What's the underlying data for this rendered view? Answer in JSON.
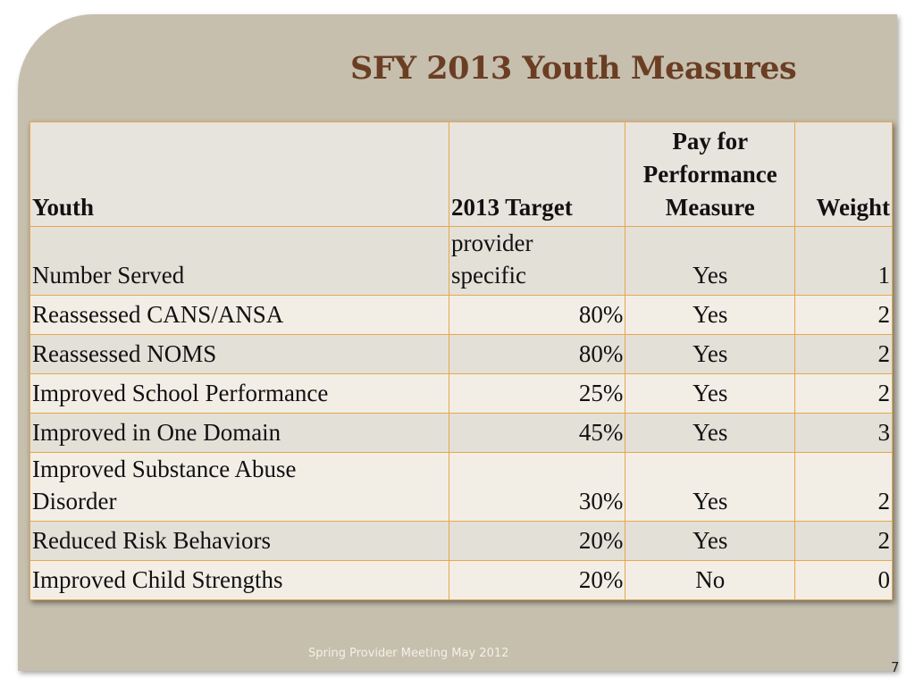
{
  "slide": {
    "title": "SFY 2013 Youth Measures",
    "footer": "Spring Provider Meeting May 2012",
    "page_number": "7"
  },
  "table": {
    "headers": {
      "youth": "Youth",
      "target": "2013 Target",
      "pay_line1": "Pay for",
      "pay_line2": "Performance",
      "pay_line3": "Measure",
      "weight": "Weight"
    },
    "rows": [
      {
        "measure": "Number Served",
        "target_line1": "provider",
        "target_line2": "specific",
        "pay": "Yes",
        "weight": "1"
      },
      {
        "measure": "Reassessed CANS/ANSA",
        "target": "80%",
        "pay": "Yes",
        "weight": "2"
      },
      {
        "measure": "Reassessed NOMS",
        "target": "80%",
        "pay": "Yes",
        "weight": "2"
      },
      {
        "measure": "Improved School Performance",
        "target": "25%",
        "pay": "Yes",
        "weight": "2"
      },
      {
        "measure": "Improved in One Domain",
        "target": "45%",
        "pay": "Yes",
        "weight": "3"
      },
      {
        "measure_line1": "Improved Substance Abuse",
        "measure_line2": "Disorder",
        "target": "30%",
        "pay": "Yes",
        "weight": "2"
      },
      {
        "measure": "Reduced Risk Behaviors",
        "target": "20%",
        "pay": "Yes",
        "weight": "2"
      },
      {
        "measure": "Improved Child Strengths",
        "target": "20%",
        "pay": "No",
        "weight": "0"
      }
    ]
  }
}
